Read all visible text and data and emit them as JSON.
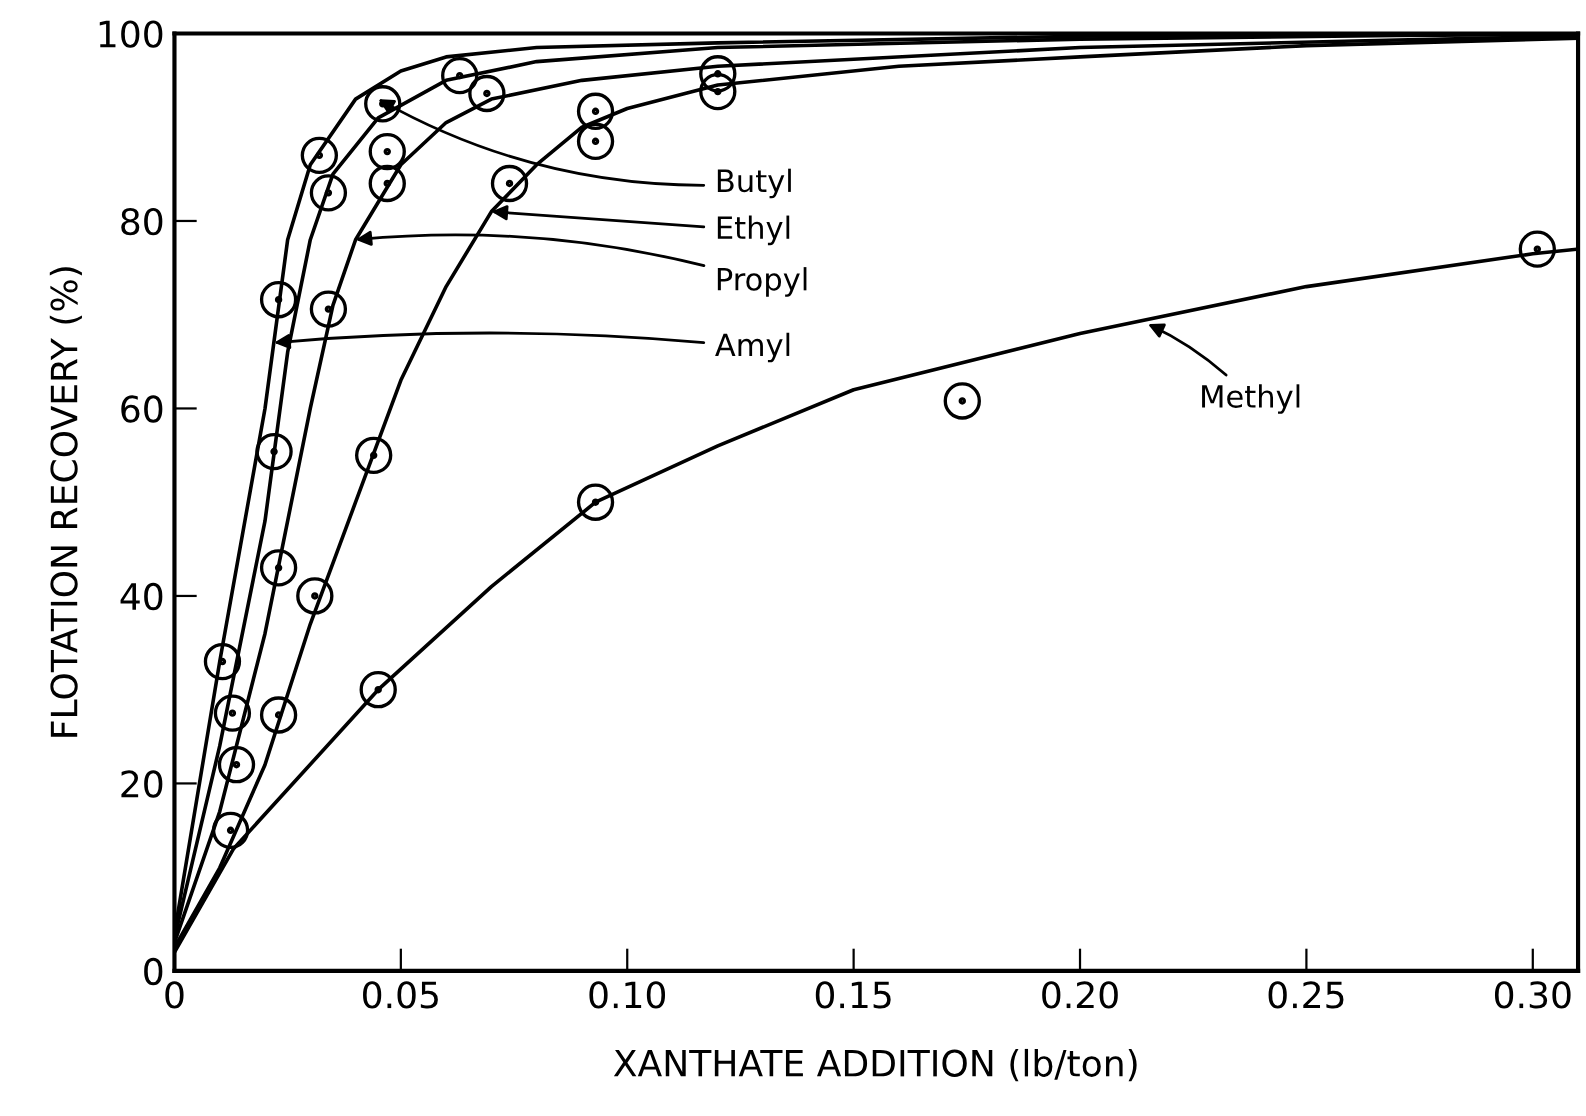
{
  "chart_data": {
    "type": "line",
    "xlabel": "XANTHATE ADDITION (lb/ton)",
    "ylabel": "FLOTATION RECOVERY (%)",
    "xlim": [
      0,
      0.31
    ],
    "ylim": [
      0,
      100
    ],
    "xticks": [
      0,
      0.05,
      {
        "value": 0.1,
        "label": "0.10"
      },
      0.15,
      {
        "value": 0.2,
        "label": "0.20"
      },
      0.25,
      {
        "value": 0.3,
        "label": "0.30"
      }
    ],
    "yticks": [
      0,
      20,
      40,
      60,
      80,
      100
    ],
    "grid": false,
    "legend": false,
    "line_style": "solid",
    "annotations": [
      {
        "text": "Butyl",
        "x": 0.045,
        "y": 93
      },
      {
        "text": "Ethyl",
        "x": 0.07,
        "y": 81
      },
      {
        "text": "Propyl",
        "x": 0.04,
        "y": 78
      },
      {
        "text": "Amyl",
        "x": 0.022,
        "y": 67
      },
      {
        "text": "Methyl",
        "x": 0.215,
        "y": 69
      }
    ],
    "series": [
      {
        "color": "#000000",
        "x": [
          0,
          0.01,
          0.02,
          0.025,
          0.03,
          0.035,
          0.045,
          0.06,
          0.08,
          0.12,
          0.2,
          0.27,
          0.31
        ],
        "values": [
          3.5,
          24,
          48,
          66,
          78,
          85,
          91,
          95,
          97,
          98.5,
          99.4,
          99.8,
          99.9
        ]
      },
      {
        "color": "#000000",
        "x": [
          0,
          0.01,
          0.02,
          0.03,
          0.04,
          0.05,
          0.06,
          0.07,
          0.08,
          0.09,
          0.1,
          0.12,
          0.16,
          0.2,
          0.25,
          0.31
        ],
        "values": [
          2.5,
          11,
          22,
          37,
          50,
          63,
          73,
          81,
          86,
          90,
          92,
          94.5,
          96.5,
          97.5,
          98.7,
          99.5
        ]
      },
      {
        "color": "#000000",
        "x": [
          0,
          0.01,
          0.02,
          0.03,
          0.035,
          0.04,
          0.05,
          0.06,
          0.07,
          0.09,
          0.12,
          0.2,
          0.27,
          0.31
        ],
        "values": [
          3,
          17,
          36,
          60,
          71,
          78,
          86,
          90.5,
          93,
          95,
          96.5,
          98.5,
          99.3,
          99.7
        ]
      },
      {
        "color": "#000000",
        "x": [
          0,
          0.01,
          0.02,
          0.025,
          0.03,
          0.04,
          0.05,
          0.06,
          0.08,
          0.12,
          0.2,
          0.27,
          0.31
        ],
        "values": [
          4,
          33,
          60,
          78,
          86,
          93,
          96,
          97.5,
          98.5,
          99,
          99.7,
          100,
          100
        ]
      },
      {
        "color": "#000000",
        "x": [
          0,
          0.013,
          0.045,
          0.07,
          0.093,
          0.12,
          0.15,
          0.2,
          0.25,
          0.3,
          0.31
        ],
        "values": [
          2,
          13,
          30,
          41,
          50,
          56,
          62,
          68,
          73,
          76.5,
          77
        ]
      },
      {
        "type": "scatter",
        "marker": "circle",
        "color": "#000000",
        "x": [
          0.0106,
          0.022,
          0.023,
          0.032,
          0.046,
          0.063,
          0.0128,
          0.023,
          0.034,
          0.047,
          0.0137,
          0.034,
          0.047,
          0.069,
          0.12,
          0.0124,
          0.023,
          0.031,
          0.044,
          0.074,
          0.093,
          0.093,
          0.12,
          0.045,
          0.093,
          0.174,
          0.301
        ],
        "values": [
          33,
          55.4,
          71.6,
          87,
          92.5,
          95.5,
          27.5,
          43,
          83,
          87.4,
          22,
          70.6,
          84,
          93.6,
          95.7,
          15,
          27.3,
          40,
          55,
          84,
          88.5,
          91.7,
          93.8,
          30,
          50,
          60.8,
          77
        ]
      }
    ]
  }
}
